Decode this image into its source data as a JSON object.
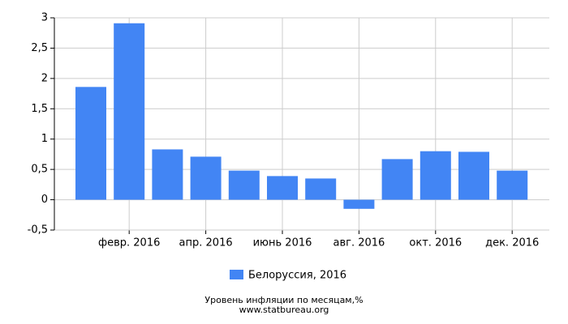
{
  "chart_data": {
    "type": "bar",
    "title": "Уровень инфляции по месяцам,%",
    "subtitle": "www.statbureau.org",
    "categories": [
      null,
      "февр. 2016",
      null,
      "апр. 2016",
      null,
      "июнь 2016",
      null,
      "авг. 2016",
      null,
      "окт. 2016",
      null,
      "дек. 2016"
    ],
    "series": [
      {
        "name": "Белоруссия, 2016",
        "color": "#4285f4",
        "values": [
          1.86,
          2.91,
          0.83,
          0.71,
          0.48,
          0.39,
          0.35,
          -0.15,
          0.67,
          0.8,
          0.79,
          0.48
        ]
      }
    ],
    "ylim": [
      -0.5,
      3
    ],
    "yticks": [
      {
        "value": -0.5,
        "label": "-0,5"
      },
      0,
      {
        "value": 0.5,
        "label": "0,5"
      },
      1,
      {
        "value": 1.5,
        "label": "1,5"
      },
      2,
      {
        "value": 2.5,
        "label": "2,5"
      },
      3
    ],
    "grid": true
  }
}
